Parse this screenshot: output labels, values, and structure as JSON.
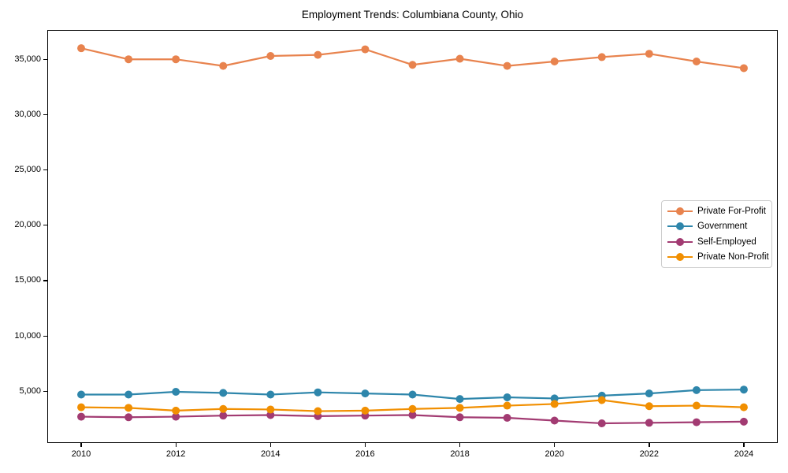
{
  "chart_data": {
    "type": "line",
    "title": "Employment Trends: Columbiana County, Ohio",
    "xlabel": "",
    "ylabel": "",
    "grid": false,
    "legend_position": "middle-right",
    "x": [
      2010,
      2011,
      2012,
      2013,
      2014,
      2015,
      2016,
      2017,
      2018,
      2019,
      2020,
      2021,
      2022,
      2023,
      2024
    ],
    "series": [
      {
        "name": "Private For-Profit",
        "color": "#e8834e",
        "values": [
          36000,
          35000,
          35000,
          34400,
          35300,
          35400,
          35900,
          34500,
          35050,
          34400,
          34800,
          35200,
          35500,
          34800,
          34200
        ]
      },
      {
        "name": "Government",
        "color": "#2e86ab",
        "values": [
          4700,
          4700,
          4950,
          4850,
          4700,
          4900,
          4800,
          4700,
          4300,
          4450,
          4350,
          4600,
          4800,
          5100,
          5150
        ]
      },
      {
        "name": "Self-Employed",
        "color": "#a23b72",
        "values": [
          2700,
          2650,
          2700,
          2800,
          2850,
          2750,
          2800,
          2850,
          2650,
          2600,
          2350,
          2100,
          2150,
          2200,
          2250
        ]
      },
      {
        "name": "Private Non-Profit",
        "color": "#f18f01",
        "values": [
          3550,
          3500,
          3250,
          3400,
          3350,
          3200,
          3250,
          3400,
          3500,
          3700,
          3850,
          4200,
          3650,
          3700,
          3550
        ]
      }
    ],
    "x_ticks": [
      {
        "value": 2010,
        "label": "2010"
      },
      {
        "value": 2012,
        "label": "2012"
      },
      {
        "value": 2014,
        "label": "2014"
      },
      {
        "value": 2016,
        "label": "2016"
      },
      {
        "value": 2018,
        "label": "2018"
      },
      {
        "value": 2020,
        "label": "2020"
      },
      {
        "value": 2022,
        "label": "2022"
      },
      {
        "value": 2024,
        "label": "2024"
      }
    ],
    "y_ticks": [
      {
        "value": 5000,
        "label": "5,000"
      },
      {
        "value": 10000,
        "label": "10,000"
      },
      {
        "value": 15000,
        "label": "15,000"
      },
      {
        "value": 20000,
        "label": "20,000"
      },
      {
        "value": 25000,
        "label": "25,000"
      },
      {
        "value": 30000,
        "label": "30,000"
      },
      {
        "value": 35000,
        "label": "35,000"
      }
    ],
    "xlim": [
      2009.3,
      2024.7
    ],
    "ylim": [
      390,
      37580
    ],
    "marker_radius": 5,
    "line_width": 2.2,
    "axis_color": "#000000"
  }
}
